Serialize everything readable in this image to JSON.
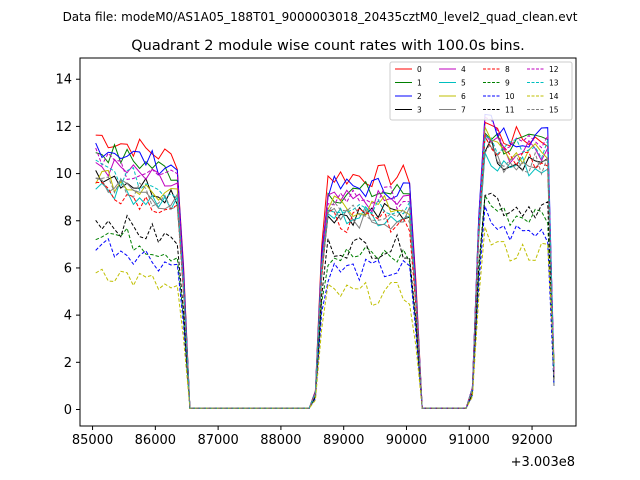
{
  "chart_data": {
    "type": "line",
    "suptitle": "Data file: modeM0/AS1A05_188T01_9000003018_20435cztM0_level2_quad_clean.evt",
    "title": "Quadrant 2 module wise count rates with 100.0s bins.",
    "xlabel": "",
    "ylabel": "",
    "x_offset_label": "+3.003e8",
    "xlim": [
      84800,
      92700
    ],
    "ylim": [
      -0.7,
      14.9
    ],
    "x_ticks": [
      85000,
      86000,
      87000,
      88000,
      89000,
      90000,
      91000,
      92000
    ],
    "x_tick_labels": [
      "85000",
      "86000",
      "87000",
      "88000",
      "89000",
      "90000",
      "91000",
      "92000"
    ],
    "y_ticks": [
      0,
      2,
      4,
      6,
      8,
      10,
      12,
      14
    ],
    "y_tick_labels": [
      "0",
      "2",
      "4",
      "6",
      "8",
      "10",
      "12",
      "14"
    ],
    "grid": false,
    "legend": {
      "placement": "top-right",
      "columns": 4
    },
    "time_grid": {
      "start": 85050,
      "step": 100,
      "count": 74
    },
    "segments": [
      {
        "start_bin": 0,
        "end_bin": 13,
        "drop_to": 0.05,
        "drop_bin": 15
      },
      {
        "start_bin": 37,
        "end_bin": 50,
        "rise_from": 0.05,
        "rise_bin": 34,
        "drop_bin": 52
      },
      {
        "start_bin": 62,
        "end_bin": 73,
        "rise_from": 0.05,
        "rise_bin": 59
      }
    ],
    "series": [
      {
        "name": "0",
        "color": "#ff0000",
        "style": "solid",
        "levels": [
          11.0,
          9.9,
          11.5
        ]
      },
      {
        "name": "1",
        "color": "#008000",
        "style": "solid",
        "levels": [
          10.4,
          9.2,
          11.2
        ]
      },
      {
        "name": "2",
        "color": "#0000ff",
        "style": "solid",
        "levels": [
          10.6,
          9.4,
          11.6
        ]
      },
      {
        "name": "3",
        "color": "#000000",
        "style": "solid",
        "levels": [
          9.5,
          8.3,
          10.6
        ]
      },
      {
        "name": "4",
        "color": "#bf00bf",
        "style": "solid",
        "levels": [
          9.8,
          8.8,
          10.9
        ]
      },
      {
        "name": "5",
        "color": "#00bfbf",
        "style": "solid",
        "levels": [
          9.0,
          8.2,
          10.3
        ]
      },
      {
        "name": "6",
        "color": "#bfbf00",
        "style": "solid",
        "levels": [
          9.3,
          8.6,
          10.8
        ]
      },
      {
        "name": "7",
        "color": "#808080",
        "style": "solid",
        "levels": [
          9.1,
          8.1,
          10.5
        ]
      },
      {
        "name": "8",
        "color": "#ff0000",
        "style": "dashed",
        "levels": [
          8.9,
          8.0,
          10.7
        ]
      },
      {
        "name": "9",
        "color": "#008000",
        "style": "dashed",
        "levels": [
          7.0,
          6.5,
          8.2
        ]
      },
      {
        "name": "10",
        "color": "#0000ff",
        "style": "dashed",
        "levels": [
          6.5,
          5.9,
          7.5
        ]
      },
      {
        "name": "11",
        "color": "#000000",
        "style": "dashed",
        "levels": [
          7.5,
          6.9,
          8.6
        ]
      },
      {
        "name": "12",
        "color": "#bf00bf",
        "style": "dashed",
        "levels": [
          10.0,
          9.0,
          11.3
        ]
      },
      {
        "name": "13",
        "color": "#00bfbf",
        "style": "dashed",
        "levels": [
          9.6,
          8.7,
          11.0
        ]
      },
      {
        "name": "14",
        "color": "#bfbf00",
        "style": "dashed",
        "levels": [
          5.4,
          4.9,
          6.7
        ]
      },
      {
        "name": "15",
        "color": "#808080",
        "style": "dashed",
        "levels": [
          9.2,
          8.4,
          10.4
        ]
      }
    ]
  }
}
